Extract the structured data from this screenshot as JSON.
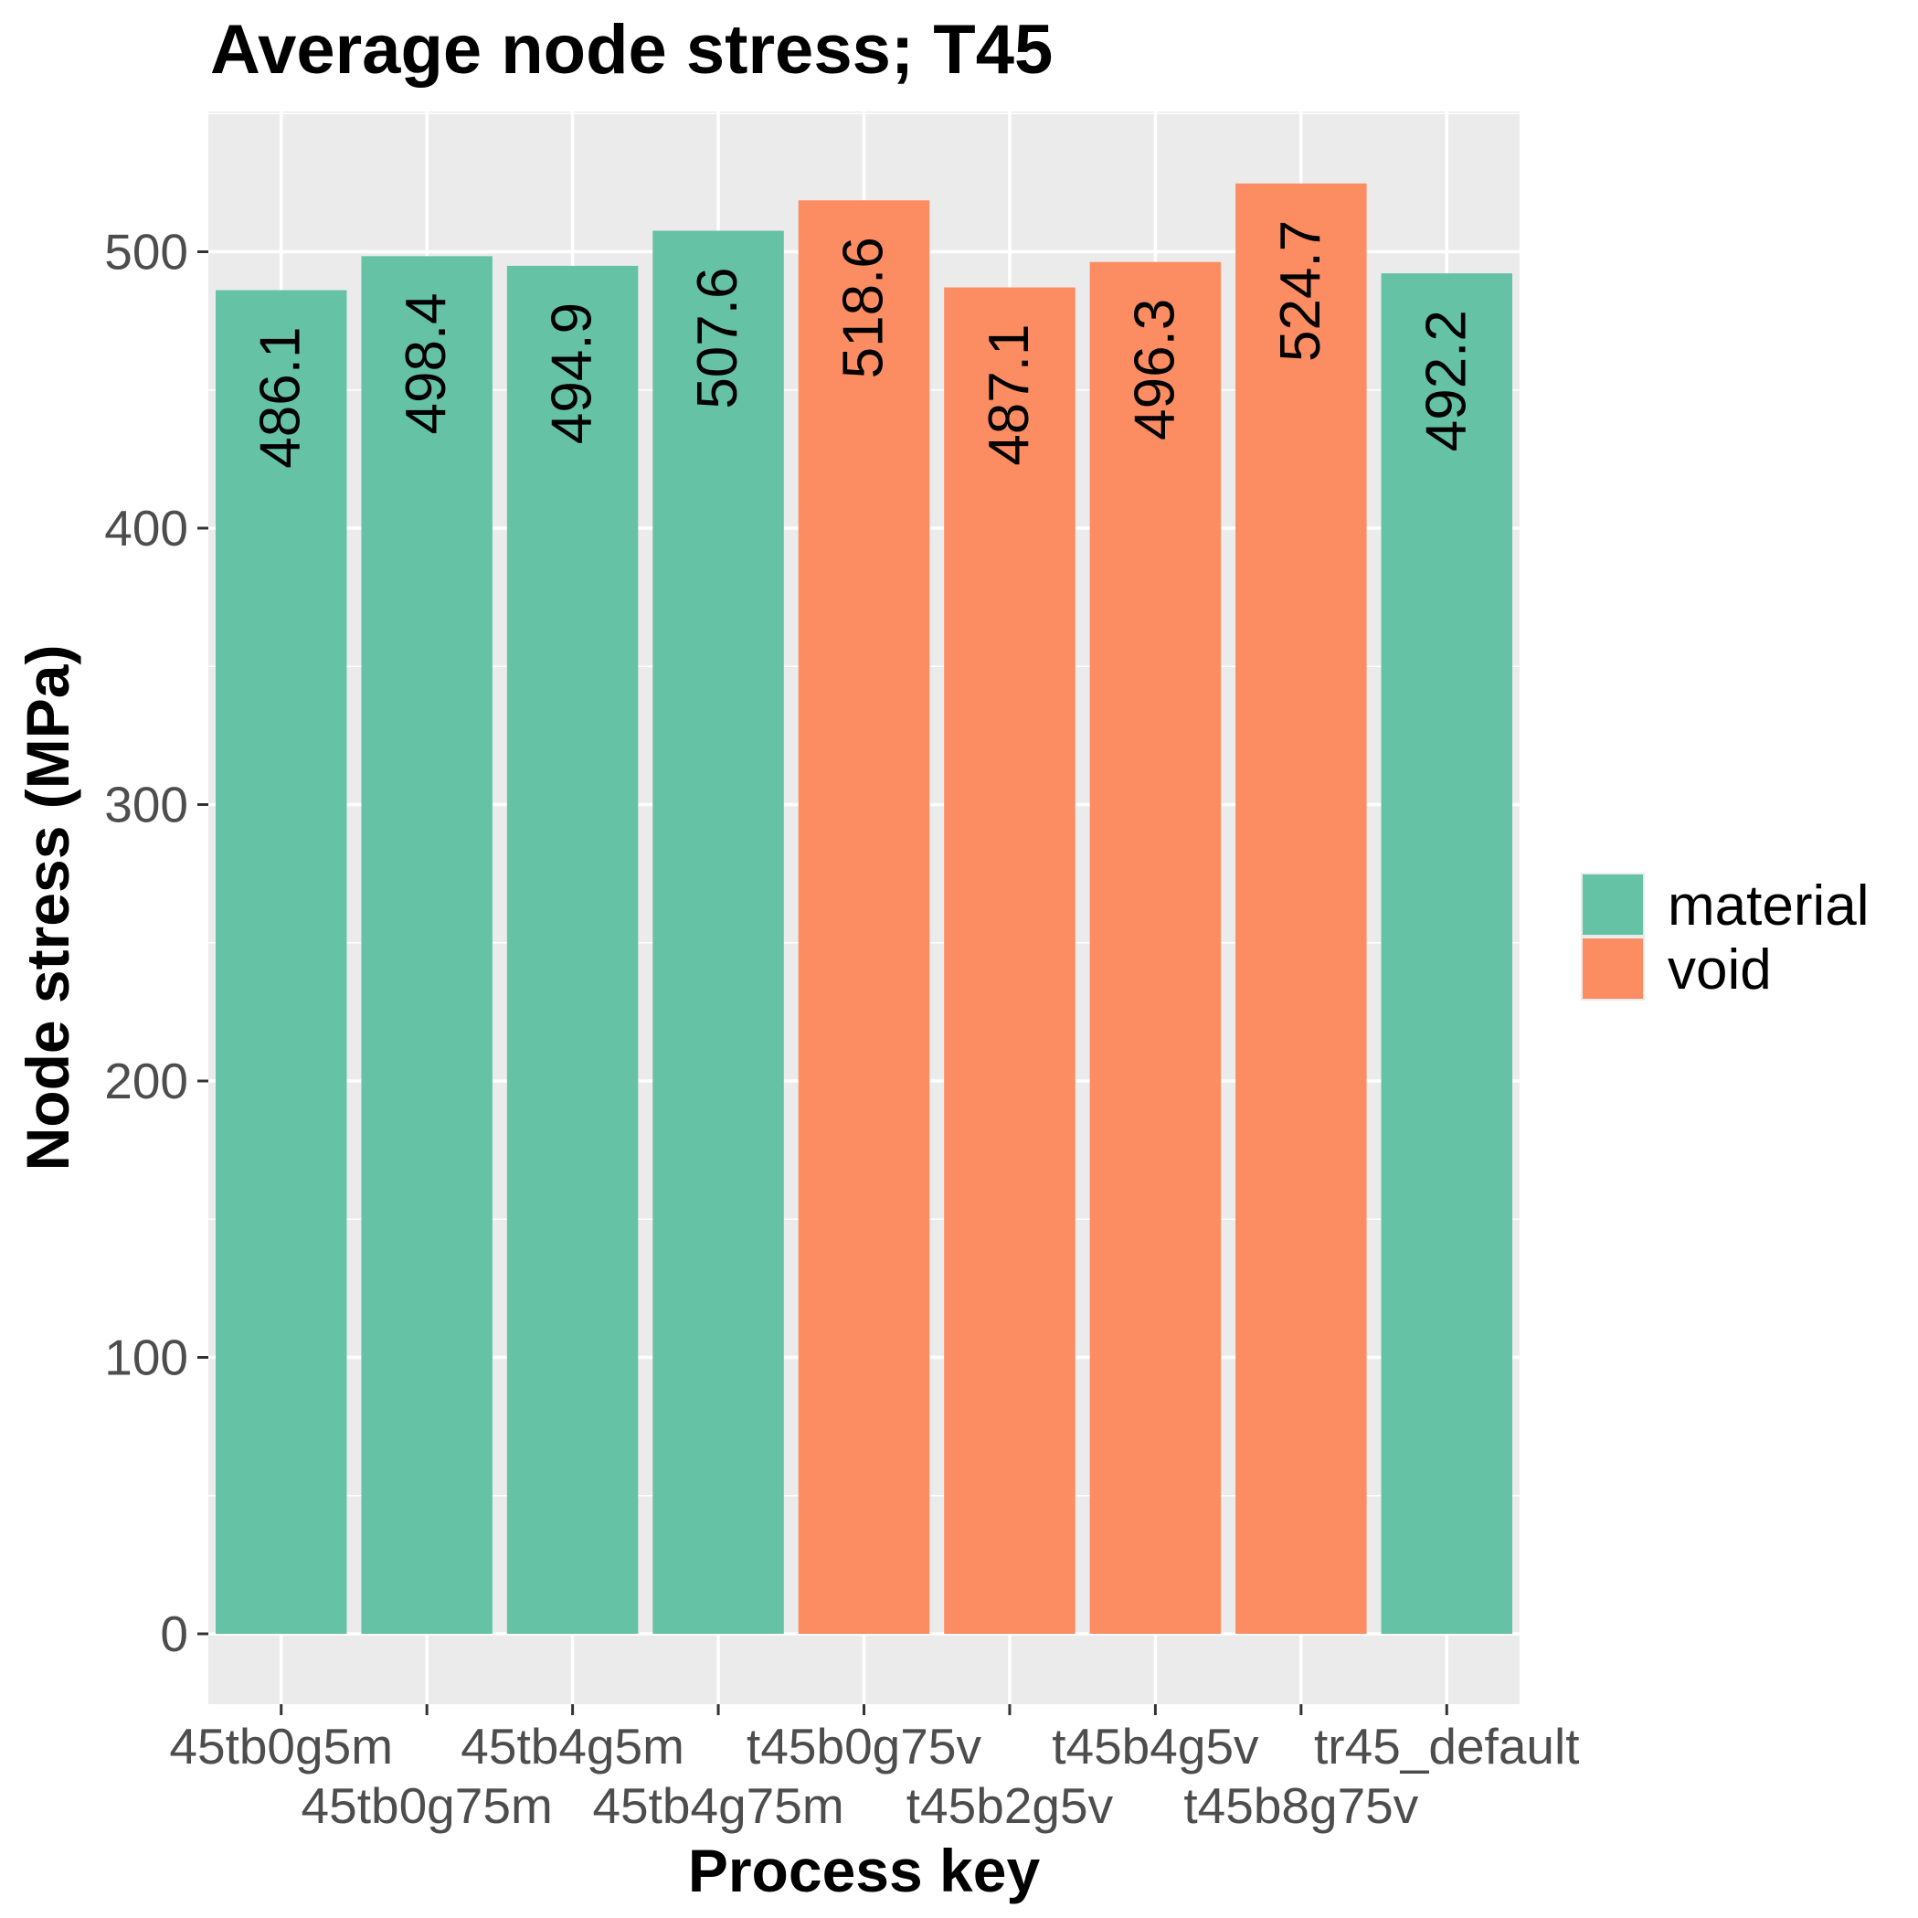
{
  "chart_data": {
    "type": "bar",
    "title": "Average node stress; T45",
    "xlabel": "Process key",
    "ylabel": "Node stress (MPa)",
    "ylim": [
      0,
      550
    ],
    "y_ticks": [
      0,
      100,
      200,
      300,
      400,
      500
    ],
    "grid": true,
    "legend_position": "right",
    "categories": [
      "t45tb0g5m",
      "t45tb0g75m",
      "t45tb4g5m",
      "t45tb4g75m",
      "t45b0g75v",
      "t45b2g5v",
      "t45b4g5v",
      "t45b8g75v",
      "tr45_default"
    ],
    "category_labels": [
      "45tb0g5m",
      "45tb0g75m",
      "45tb4g5m",
      "45tb4g75m",
      "t45b0g75v",
      "t45b2g5v",
      "t45b4g5v",
      "t45b8g75v",
      "tr45_default"
    ],
    "values": [
      486.1,
      498.4,
      494.9,
      507.6,
      518.6,
      487.1,
      496.3,
      524.7,
      492.2
    ],
    "data_labels": [
      "486.1",
      "498.4",
      "494.9",
      "507.6",
      "518.6",
      "487.1",
      "496.3",
      "524.7",
      "492.2"
    ],
    "groups": [
      "material",
      "material",
      "material",
      "material",
      "void",
      "void",
      "void",
      "void",
      "material"
    ],
    "legend": [
      {
        "name": "material",
        "color": "#66c2a5"
      },
      {
        "name": "void",
        "color": "#fc8d62"
      }
    ],
    "panel_background": "#ebebeb",
    "grid_color": "#ffffff"
  }
}
